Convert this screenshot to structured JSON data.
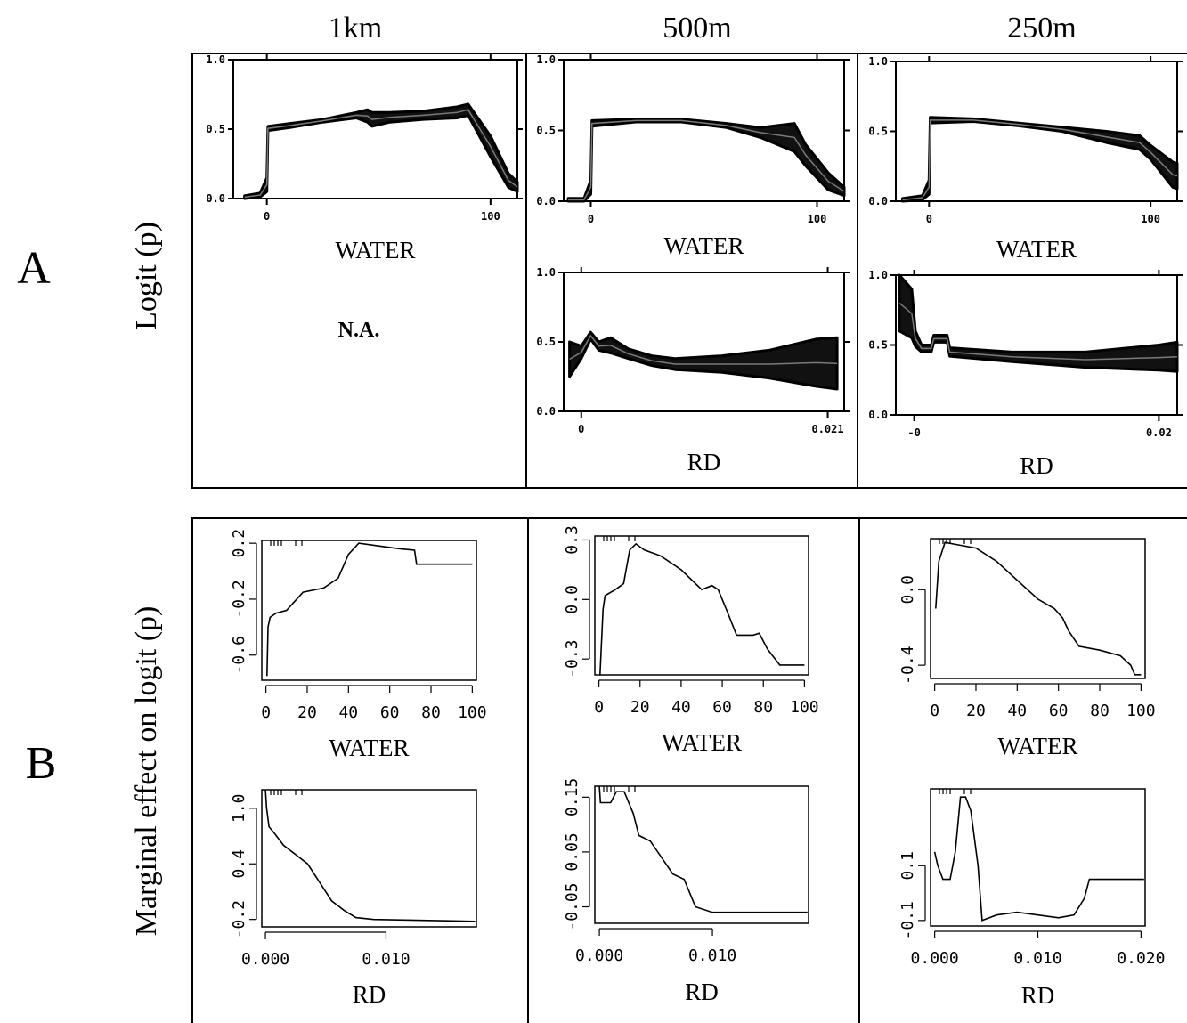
{
  "figure": {
    "columns": [
      "1km",
      "500m",
      "250m"
    ],
    "row_letters": [
      "A",
      "B"
    ],
    "row_a_ylabel": "Logit (p)",
    "row_b_ylabel": "Marginal effect on  logit (p)",
    "na_text": "N.A."
  },
  "chart_data": [
    {
      "id": "A-1km-WATER",
      "row": "A",
      "column": "1km",
      "type": "area",
      "xlabel": "WATER",
      "ylabel": "Logit (p)",
      "xlim": [
        -15,
        112
      ],
      "ylim": [
        0,
        1
      ],
      "xticks": [
        0,
        100
      ],
      "xtick_labels": [
        "0",
        "100"
      ],
      "yticks": [
        0,
        0.5,
        1
      ],
      "ytick_labels": [
        "0.0",
        "0.5",
        "1.0"
      ],
      "upper": [
        [
          -10,
          0.02
        ],
        [
          -3,
          0.04
        ],
        [
          0,
          0.15
        ],
        [
          0.5,
          0.52
        ],
        [
          10,
          0.54
        ],
        [
          25,
          0.57
        ],
        [
          40,
          0.62
        ],
        [
          45,
          0.64
        ],
        [
          47,
          0.62
        ],
        [
          55,
          0.62
        ],
        [
          70,
          0.63
        ],
        [
          85,
          0.66
        ],
        [
          90,
          0.68
        ],
        [
          100,
          0.45
        ],
        [
          108,
          0.18
        ],
        [
          112,
          0.12
        ]
      ],
      "lower": [
        [
          -10,
          0
        ],
        [
          -3,
          0.01
        ],
        [
          0,
          0.05
        ],
        [
          0.5,
          0.49
        ],
        [
          10,
          0.51
        ],
        [
          25,
          0.55
        ],
        [
          40,
          0.58
        ],
        [
          45,
          0.55
        ],
        [
          47,
          0.52
        ],
        [
          55,
          0.55
        ],
        [
          70,
          0.57
        ],
        [
          85,
          0.58
        ],
        [
          90,
          0.6
        ],
        [
          100,
          0.3
        ],
        [
          108,
          0.08
        ],
        [
          112,
          0.05
        ]
      ]
    },
    {
      "id": "A-500m-WATER",
      "row": "A",
      "column": "500m",
      "type": "area",
      "xlabel": "WATER",
      "ylabel": "Logit (p)",
      "xlim": [
        -12,
        112
      ],
      "ylim": [
        0,
        1
      ],
      "xticks": [
        0,
        100
      ],
      "xtick_labels": [
        "0",
        "100"
      ],
      "yticks": [
        0,
        0.5,
        1
      ],
      "ytick_labels": [
        "0.0",
        "0.5",
        "1.0"
      ],
      "upper": [
        [
          -10,
          0.02
        ],
        [
          -3,
          0.02
        ],
        [
          0,
          0.15
        ],
        [
          0.5,
          0.57
        ],
        [
          20,
          0.58
        ],
        [
          40,
          0.58
        ],
        [
          60,
          0.55
        ],
        [
          75,
          0.52
        ],
        [
          90,
          0.55
        ],
        [
          95,
          0.4
        ],
        [
          105,
          0.2
        ],
        [
          112,
          0.1
        ]
      ],
      "lower": [
        [
          -10,
          0
        ],
        [
          -3,
          0
        ],
        [
          0,
          0.05
        ],
        [
          0.5,
          0.53
        ],
        [
          20,
          0.56
        ],
        [
          40,
          0.56
        ],
        [
          60,
          0.52
        ],
        [
          75,
          0.45
        ],
        [
          90,
          0.35
        ],
        [
          95,
          0.25
        ],
        [
          105,
          0.08
        ],
        [
          112,
          0.04
        ]
      ]
    },
    {
      "id": "A-250m-WATER",
      "row": "A",
      "column": "250m",
      "type": "area",
      "xlabel": "WATER",
      "ylabel": "Logit (p)",
      "xlim": [
        -15,
        112
      ],
      "ylim": [
        0,
        1
      ],
      "xticks": [
        0,
        100
      ],
      "xtick_labels": [
        "0",
        "100"
      ],
      "yticks": [
        0,
        0.5,
        1
      ],
      "ytick_labels": [
        "0.0",
        "0.5",
        "1.0"
      ],
      "upper": [
        [
          -12,
          0.02
        ],
        [
          -3,
          0.04
        ],
        [
          0,
          0.15
        ],
        [
          0.5,
          0.6
        ],
        [
          20,
          0.59
        ],
        [
          40,
          0.56
        ],
        [
          60,
          0.53
        ],
        [
          80,
          0.5
        ],
        [
          95,
          0.47
        ],
        [
          100,
          0.4
        ],
        [
          110,
          0.28
        ],
        [
          112,
          0.27
        ]
      ],
      "lower": [
        [
          -12,
          0
        ],
        [
          -3,
          0.01
        ],
        [
          0,
          0.05
        ],
        [
          0.5,
          0.56
        ],
        [
          20,
          0.57
        ],
        [
          40,
          0.54
        ],
        [
          60,
          0.5
        ],
        [
          80,
          0.42
        ],
        [
          95,
          0.37
        ],
        [
          100,
          0.3
        ],
        [
          110,
          0.1
        ],
        [
          112,
          0.09
        ]
      ]
    },
    {
      "id": "A-500m-RD",
      "row": "A",
      "column": "500m",
      "type": "area",
      "xlabel": "RD",
      "ylabel": "Logit (p)",
      "xlim": [
        -0.0015,
        0.0224
      ],
      "ylim": [
        0,
        1
      ],
      "xticks": [
        0,
        0.021
      ],
      "xtick_labels": [
        "0",
        "0.021"
      ],
      "yticks": [
        0,
        0.5,
        1
      ],
      "ytick_labels": [
        "0.0",
        "0.5",
        "1.0"
      ],
      "upper": [
        [
          -0.001,
          0.5
        ],
        [
          0,
          0.47
        ],
        [
          0.0008,
          0.57
        ],
        [
          0.0015,
          0.5
        ],
        [
          0.0025,
          0.53
        ],
        [
          0.004,
          0.45
        ],
        [
          0.006,
          0.4
        ],
        [
          0.008,
          0.38
        ],
        [
          0.012,
          0.4
        ],
        [
          0.016,
          0.44
        ],
        [
          0.02,
          0.52
        ],
        [
          0.0218,
          0.53
        ]
      ],
      "lower": [
        [
          -0.001,
          0.25
        ],
        [
          0,
          0.38
        ],
        [
          0.0008,
          0.52
        ],
        [
          0.0015,
          0.44
        ],
        [
          0.0025,
          0.42
        ],
        [
          0.004,
          0.38
        ],
        [
          0.006,
          0.33
        ],
        [
          0.008,
          0.3
        ],
        [
          0.012,
          0.28
        ],
        [
          0.016,
          0.24
        ],
        [
          0.02,
          0.18
        ],
        [
          0.0218,
          0.16
        ]
      ]
    },
    {
      "id": "A-250m-RD",
      "row": "A",
      "column": "250m",
      "type": "area",
      "xlabel": "RD",
      "ylabel": "Logit (p)",
      "xlim": [
        -0.0015,
        0.0215
      ],
      "ylim": [
        0,
        1
      ],
      "xticks": [
        0,
        0.02
      ],
      "xtick_labels": [
        "-0",
        "0.02"
      ],
      "yticks": [
        0,
        0.5,
        1
      ],
      "ytick_labels": [
        "0.0",
        "0.5",
        "1.0"
      ],
      "upper": [
        [
          -0.0012,
          1.0
        ],
        [
          -0.0002,
          0.9
        ],
        [
          0.0001,
          0.6
        ],
        [
          0.0006,
          0.5
        ],
        [
          0.0014,
          0.5
        ],
        [
          0.0016,
          0.57
        ],
        [
          0.0027,
          0.57
        ],
        [
          0.0029,
          0.48
        ],
        [
          0.008,
          0.45
        ],
        [
          0.014,
          0.45
        ],
        [
          0.02,
          0.5
        ],
        [
          0.0215,
          0.52
        ]
      ],
      "lower": [
        [
          -0.0012,
          0.6
        ],
        [
          -0.0002,
          0.55
        ],
        [
          0.0001,
          0.49
        ],
        [
          0.0006,
          0.45
        ],
        [
          0.0014,
          0.45
        ],
        [
          0.0016,
          0.52
        ],
        [
          0.0027,
          0.52
        ],
        [
          0.0029,
          0.42
        ],
        [
          0.008,
          0.38
        ],
        [
          0.014,
          0.34
        ],
        [
          0.02,
          0.32
        ],
        [
          0.0215,
          0.31
        ]
      ]
    },
    {
      "id": "B-1km-WATER",
      "row": "B",
      "column": "1km",
      "type": "line",
      "xlabel": "WATER",
      "ylabel": "Marginal effect on  logit (p)",
      "xlim": [
        -2,
        102
      ],
      "ylim": [
        -0.78,
        0.22
      ],
      "xticks": [
        0,
        20,
        40,
        60,
        80,
        100
      ],
      "xtick_labels": [
        "0",
        "20",
        "40",
        "60",
        "80",
        "100"
      ],
      "yticks": [
        -0.6,
        -0.2,
        0.2
      ],
      "ytick_labels": [
        "-0.6",
        "-0.2",
        "0.2"
      ],
      "values": [
        [
          0.5,
          -0.75
        ],
        [
          1,
          -0.4
        ],
        [
          2,
          -0.33
        ],
        [
          5,
          -0.3
        ],
        [
          10,
          -0.28
        ],
        [
          18,
          -0.15
        ],
        [
          28,
          -0.12
        ],
        [
          35,
          -0.05
        ],
        [
          40,
          0.12
        ],
        [
          45,
          0.2
        ],
        [
          55,
          0.18
        ],
        [
          65,
          0.16
        ],
        [
          72,
          0.15
        ],
        [
          73,
          0.05
        ],
        [
          100,
          0.05
        ]
      ]
    },
    {
      "id": "B-500m-WATER",
      "row": "B",
      "column": "500m",
      "type": "line",
      "xlabel": "WATER",
      "ylabel": "Marginal effect on  logit (p)",
      "xlim": [
        -2,
        102
      ],
      "ylim": [
        -0.38,
        0.32
      ],
      "xticks": [
        0,
        20,
        40,
        60,
        80,
        100
      ],
      "xtick_labels": [
        "0",
        "20",
        "40",
        "60",
        "80",
        "100"
      ],
      "yticks": [
        -0.3,
        0,
        0.3
      ],
      "ytick_labels": [
        "-0.3",
        "0.0",
        "0.3"
      ],
      "values": [
        [
          0.5,
          -0.38
        ],
        [
          2,
          -0.05
        ],
        [
          3,
          0.02
        ],
        [
          8,
          0.05
        ],
        [
          12,
          0.08
        ],
        [
          15,
          0.25
        ],
        [
          18,
          0.28
        ],
        [
          22,
          0.25
        ],
        [
          30,
          0.22
        ],
        [
          40,
          0.15
        ],
        [
          50,
          0.05
        ],
        [
          55,
          0.07
        ],
        [
          58,
          0.05
        ],
        [
          62,
          -0.05
        ],
        [
          67,
          -0.18
        ],
        [
          75,
          -0.18
        ],
        [
          78,
          -0.17
        ],
        [
          82,
          -0.25
        ],
        [
          88,
          -0.33
        ],
        [
          100,
          -0.33
        ]
      ]
    },
    {
      "id": "B-250m-WATER",
      "row": "B",
      "column": "250m",
      "type": "line",
      "xlabel": "WATER",
      "ylabel": "Marginal effect on  logit (p)",
      "xlim": [
        -2,
        102
      ],
      "ylim": [
        -0.47,
        0.27
      ],
      "xticks": [
        0,
        20,
        40,
        60,
        80,
        100
      ],
      "xtick_labels": [
        "0",
        "20",
        "40",
        "60",
        "80",
        "100"
      ],
      "yticks": [
        -0.4,
        0
      ],
      "ytick_labels": [
        "-0.4",
        "0.0"
      ],
      "values": [
        [
          0.5,
          -0.1
        ],
        [
          2,
          0.15
        ],
        [
          5,
          0.25
        ],
        [
          10,
          0.24
        ],
        [
          20,
          0.22
        ],
        [
          30,
          0.15
        ],
        [
          40,
          0.05
        ],
        [
          50,
          -0.05
        ],
        [
          58,
          -0.1
        ],
        [
          62,
          -0.15
        ],
        [
          65,
          -0.22
        ],
        [
          70,
          -0.3
        ],
        [
          80,
          -0.32
        ],
        [
          90,
          -0.35
        ],
        [
          95,
          -0.4
        ],
        [
          97,
          -0.45
        ],
        [
          100,
          -0.45
        ]
      ]
    },
    {
      "id": "B-1km-RD",
      "row": "B",
      "column": "1km",
      "type": "line",
      "xlabel": "RD",
      "ylabel": "Marginal effect on  logit (p)",
      "xlim": [
        -0.0003,
        0.0175
      ],
      "ylim": [
        -0.28,
        1.2
      ],
      "xticks": [
        0,
        0.01
      ],
      "xtick_labels": [
        "0.000",
        "0.010"
      ],
      "yticks": [
        -0.2,
        0.4,
        1.0
      ],
      "ytick_labels": [
        "-0.2",
        "0.4",
        "1.0"
      ],
      "values": [
        [
          0,
          1.2
        ],
        [
          0.0001,
          1.0
        ],
        [
          0.0003,
          0.8
        ],
        [
          0.0008,
          0.72
        ],
        [
          0.0015,
          0.6
        ],
        [
          0.0025,
          0.5
        ],
        [
          0.0035,
          0.4
        ],
        [
          0.0045,
          0.2
        ],
        [
          0.0055,
          0
        ],
        [
          0.0065,
          -0.1
        ],
        [
          0.0075,
          -0.18
        ],
        [
          0.009,
          -0.2
        ],
        [
          0.0174,
          -0.22
        ]
      ]
    },
    {
      "id": "B-500m-RD",
      "row": "B",
      "column": "500m",
      "type": "line",
      "xlabel": "RD",
      "ylabel": "Marginal effect on  logit (p)",
      "xlim": [
        -0.0004,
        0.0185
      ],
      "ylim": [
        -0.08,
        0.17
      ],
      "xticks": [
        0,
        0.01
      ],
      "xtick_labels": [
        "0.000",
        "0.010"
      ],
      "yticks": [
        -0.05,
        0.05,
        0.15
      ],
      "ytick_labels": [
        "-0.05",
        "0.05",
        "0.15"
      ],
      "values": [
        [
          0,
          0.17
        ],
        [
          0.0001,
          0.14
        ],
        [
          0.001,
          0.14
        ],
        [
          0.0015,
          0.16
        ],
        [
          0.0022,
          0.16
        ],
        [
          0.003,
          0.12
        ],
        [
          0.0035,
          0.08
        ],
        [
          0.0045,
          0.07
        ],
        [
          0.0055,
          0.04
        ],
        [
          0.0065,
          0.01
        ],
        [
          0.0075,
          0
        ],
        [
          0.0085,
          -0.05
        ],
        [
          0.01,
          -0.06
        ],
        [
          0.0184,
          -0.06
        ]
      ]
    },
    {
      "id": "B-250m-RD",
      "row": "B",
      "column": "250m",
      "type": "line",
      "xlabel": "RD",
      "ylabel": "Marginal effect on  logit (p)",
      "xlim": [
        -0.0004,
        0.0204
      ],
      "ylim": [
        -0.12,
        0.38
      ],
      "xticks": [
        0,
        0.01,
        0.02
      ],
      "xtick_labels": [
        "0.000",
        "0.010",
        "0.020"
      ],
      "yticks": [
        -0.1,
        0.1
      ],
      "ytick_labels": [
        "-0.1",
        "0.1"
      ],
      "values": [
        [
          0,
          0.15
        ],
        [
          0.0003,
          0.1
        ],
        [
          0.0008,
          0.05
        ],
        [
          0.0015,
          0.05
        ],
        [
          0.002,
          0.15
        ],
        [
          0.0025,
          0.35
        ],
        [
          0.003,
          0.35
        ],
        [
          0.0035,
          0.3
        ],
        [
          0.0042,
          0.1
        ],
        [
          0.0046,
          -0.1
        ],
        [
          0.006,
          -0.08
        ],
        [
          0.008,
          -0.07
        ],
        [
          0.01,
          -0.08
        ],
        [
          0.012,
          -0.09
        ],
        [
          0.0135,
          -0.08
        ],
        [
          0.0145,
          -0.02
        ],
        [
          0.015,
          0.05
        ],
        [
          0.0203,
          0.05
        ]
      ]
    }
  ]
}
